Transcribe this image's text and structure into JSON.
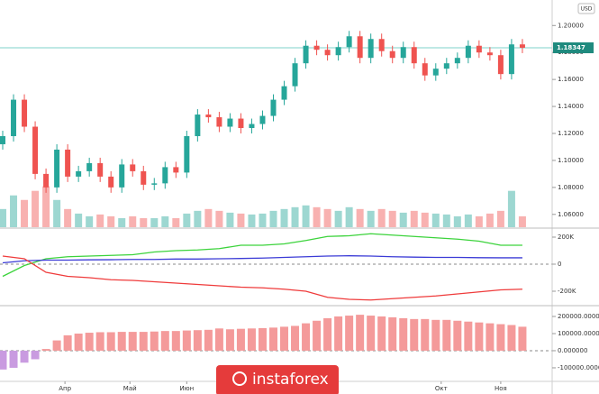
{
  "watermark": "instaforex",
  "chart_data": [
    {
      "type": "candlestick",
      "currency": "USD",
      "xlim": [
        -1,
        203
      ],
      "x": [
        0,
        4,
        8,
        12,
        16,
        20,
        24,
        28,
        32,
        36,
        40,
        44,
        48,
        52,
        56,
        60,
        64,
        68,
        72,
        76,
        80,
        84,
        88,
        92,
        96,
        100,
        104,
        108,
        112,
        116,
        120,
        124,
        128,
        132,
        136,
        140,
        144,
        148,
        152,
        156,
        160,
        164,
        168,
        172,
        176,
        180,
        184,
        188,
        192
      ],
      "open": [
        1.112,
        1.118,
        1.145,
        1.125,
        1.09,
        1.08,
        1.108,
        1.088,
        1.092,
        1.098,
        1.088,
        1.08,
        1.097,
        1.092,
        1.082,
        1.083,
        1.095,
        1.091,
        1.118,
        1.134,
        1.132,
        1.125,
        1.131,
        1.124,
        1.127,
        1.133,
        1.145,
        1.155,
        1.172,
        1.185,
        1.182,
        1.178,
        1.184,
        1.192,
        1.176,
        1.19,
        1.181,
        1.176,
        1.184,
        1.172,
        1.163,
        1.168,
        1.172,
        1.176,
        1.185,
        1.18,
        1.178,
        1.164,
        1.186
      ],
      "high": [
        1.122,
        1.149,
        1.149,
        1.129,
        1.094,
        1.112,
        1.112,
        1.096,
        1.102,
        1.102,
        1.092,
        1.101,
        1.101,
        1.096,
        1.087,
        1.099,
        1.099,
        1.122,
        1.138,
        1.138,
        1.136,
        1.135,
        1.135,
        1.131,
        1.137,
        1.149,
        1.159,
        1.176,
        1.189,
        1.189,
        1.186,
        1.188,
        1.196,
        1.196,
        1.194,
        1.194,
        1.185,
        1.188,
        1.188,
        1.176,
        1.172,
        1.176,
        1.18,
        1.189,
        1.189,
        1.184,
        1.182,
        1.19,
        1.19
      ],
      "low": [
        1.108,
        1.114,
        1.121,
        1.086,
        1.076,
        1.076,
        1.084,
        1.084,
        1.088,
        1.084,
        1.076,
        1.076,
        1.088,
        1.078,
        1.078,
        1.079,
        1.087,
        1.087,
        1.114,
        1.128,
        1.121,
        1.121,
        1.12,
        1.12,
        1.123,
        1.129,
        1.141,
        1.151,
        1.168,
        1.178,
        1.174,
        1.174,
        1.18,
        1.172,
        1.172,
        1.177,
        1.172,
        1.172,
        1.168,
        1.159,
        1.159,
        1.164,
        1.168,
        1.172,
        1.176,
        1.174,
        1.16,
        1.16,
        1.1795
      ],
      "close": [
        1.118,
        1.145,
        1.125,
        1.09,
        1.08,
        1.108,
        1.088,
        1.092,
        1.098,
        1.088,
        1.08,
        1.097,
        1.092,
        1.082,
        1.083,
        1.095,
        1.091,
        1.118,
        1.134,
        1.132,
        1.125,
        1.131,
        1.124,
        1.127,
        1.133,
        1.145,
        1.155,
        1.172,
        1.185,
        1.182,
        1.178,
        1.184,
        1.192,
        1.176,
        1.19,
        1.181,
        1.176,
        1.184,
        1.172,
        1.163,
        1.168,
        1.172,
        1.176,
        1.185,
        1.18,
        1.178,
        1.164,
        1.186,
        1.1835
      ],
      "volume": [
        20,
        35,
        30,
        40,
        45,
        30,
        20,
        15,
        12,
        14,
        12,
        10,
        12,
        10,
        10,
        12,
        10,
        15,
        18,
        20,
        18,
        16,
        15,
        14,
        15,
        18,
        20,
        22,
        24,
        22,
        20,
        18,
        22,
        20,
        18,
        20,
        18,
        16,
        18,
        16,
        15,
        14,
        12,
        14,
        12,
        15,
        18,
        40,
        12
      ],
      "volume_ylim": [
        0,
        250
      ],
      "up_color": "#26a69a",
      "down_color": "#ef5350",
      "ylim": [
        1.0505,
        1.2189
      ],
      "yticks": [
        {
          "value": 1.06,
          "label": "1.06000"
        },
        {
          "value": 1.08,
          "label": "1.08000"
        },
        {
          "value": 1.1,
          "label": "1.10000"
        },
        {
          "value": 1.12,
          "label": "1.12000"
        },
        {
          "value": 1.14,
          "label": "1.14000"
        },
        {
          "value": 1.16,
          "label": "1.16000"
        },
        {
          "value": 1.18,
          "label": "1.18000"
        },
        {
          "value": 1.2,
          "label": "1.20000"
        }
      ],
      "last_price": 1.18347
    },
    {
      "type": "line",
      "xlim": [
        -1,
        203
      ],
      "x": [
        0,
        8,
        16,
        24,
        32,
        40,
        48,
        56,
        64,
        72,
        80,
        88,
        96,
        104,
        112,
        120,
        128,
        136,
        144,
        152,
        160,
        168,
        176,
        184,
        192
      ],
      "ylim": [
        -300000,
        260000
      ],
      "yticks": [
        {
          "value": -200000,
          "label": "-200K"
        },
        0,
        {
          "value": 200000,
          "label": "200K"
        }
      ],
      "series": [
        {
          "color": "#3cd33c",
          "values": [
            -90000,
            -10000,
            40000,
            55000,
            60000,
            65000,
            70000,
            90000,
            100000,
            105000,
            115000,
            140000,
            140000,
            150000,
            175000,
            205000,
            210000,
            225000,
            215000,
            205000,
            195000,
            185000,
            170000,
            140000,
            140000
          ]
        },
        {
          "color": "#3b3bd6",
          "values": [
            10000,
            25000,
            30000,
            30000,
            32000,
            33000,
            35000,
            35000,
            38000,
            38000,
            40000,
            42000,
            45000,
            50000,
            55000,
            60000,
            62000,
            60000,
            55000,
            52000,
            50000,
            50000,
            48000,
            47000,
            47000
          ]
        },
        {
          "color": "#ef3b3b",
          "values": [
            60000,
            40000,
            -60000,
            -90000,
            -100000,
            -115000,
            -120000,
            -130000,
            -140000,
            -150000,
            -160000,
            -170000,
            -175000,
            -185000,
            -200000,
            -245000,
            -260000,
            -265000,
            -255000,
            -245000,
            -235000,
            -220000,
            -205000,
            -190000,
            -185000
          ]
        }
      ]
    },
    {
      "type": "bar",
      "xlim": [
        -1,
        203
      ],
      "x": [
        0,
        4,
        8,
        12,
        16,
        20,
        24,
        28,
        32,
        36,
        40,
        44,
        48,
        52,
        56,
        60,
        64,
        68,
        72,
        76,
        80,
        84,
        88,
        92,
        96,
        100,
        104,
        108,
        112,
        116,
        120,
        124,
        128,
        132,
        136,
        140,
        144,
        148,
        152,
        156,
        160,
        164,
        168,
        172,
        176,
        180,
        184,
        188,
        192
      ],
      "values": [
        -110000,
        -100000,
        -70000,
        -50000,
        10000,
        60000,
        90000,
        100000,
        105000,
        108000,
        108000,
        110000,
        110000,
        110000,
        112000,
        115000,
        115000,
        118000,
        120000,
        122000,
        130000,
        125000,
        128000,
        130000,
        132000,
        135000,
        140000,
        145000,
        160000,
        175000,
        190000,
        200000,
        205000,
        210000,
        205000,
        200000,
        195000,
        190000,
        185000,
        185000,
        180000,
        180000,
        175000,
        170000,
        165000,
        160000,
        155000,
        150000,
        140000
      ],
      "positive_color": "#f49a9a",
      "negative_color": "#c99be0",
      "ylim": [
        -174000,
        258000
      ],
      "yticks": [
        {
          "value": -100000,
          "label": "-100000.000000"
        },
        {
          "value": 0,
          "label": "0.000000"
        },
        {
          "value": 100000,
          "label": "100000.000000"
        },
        {
          "value": 200000,
          "label": "200000.000000"
        }
      ],
      "xticks": [
        {
          "value": 23,
          "label": "Апр"
        },
        {
          "value": 47,
          "label": "Май"
        },
        {
          "value": 68,
          "label": "Июн"
        },
        {
          "value": 162,
          "label": "Окт"
        },
        {
          "value": 184,
          "label": "Ноя"
        }
      ]
    }
  ]
}
